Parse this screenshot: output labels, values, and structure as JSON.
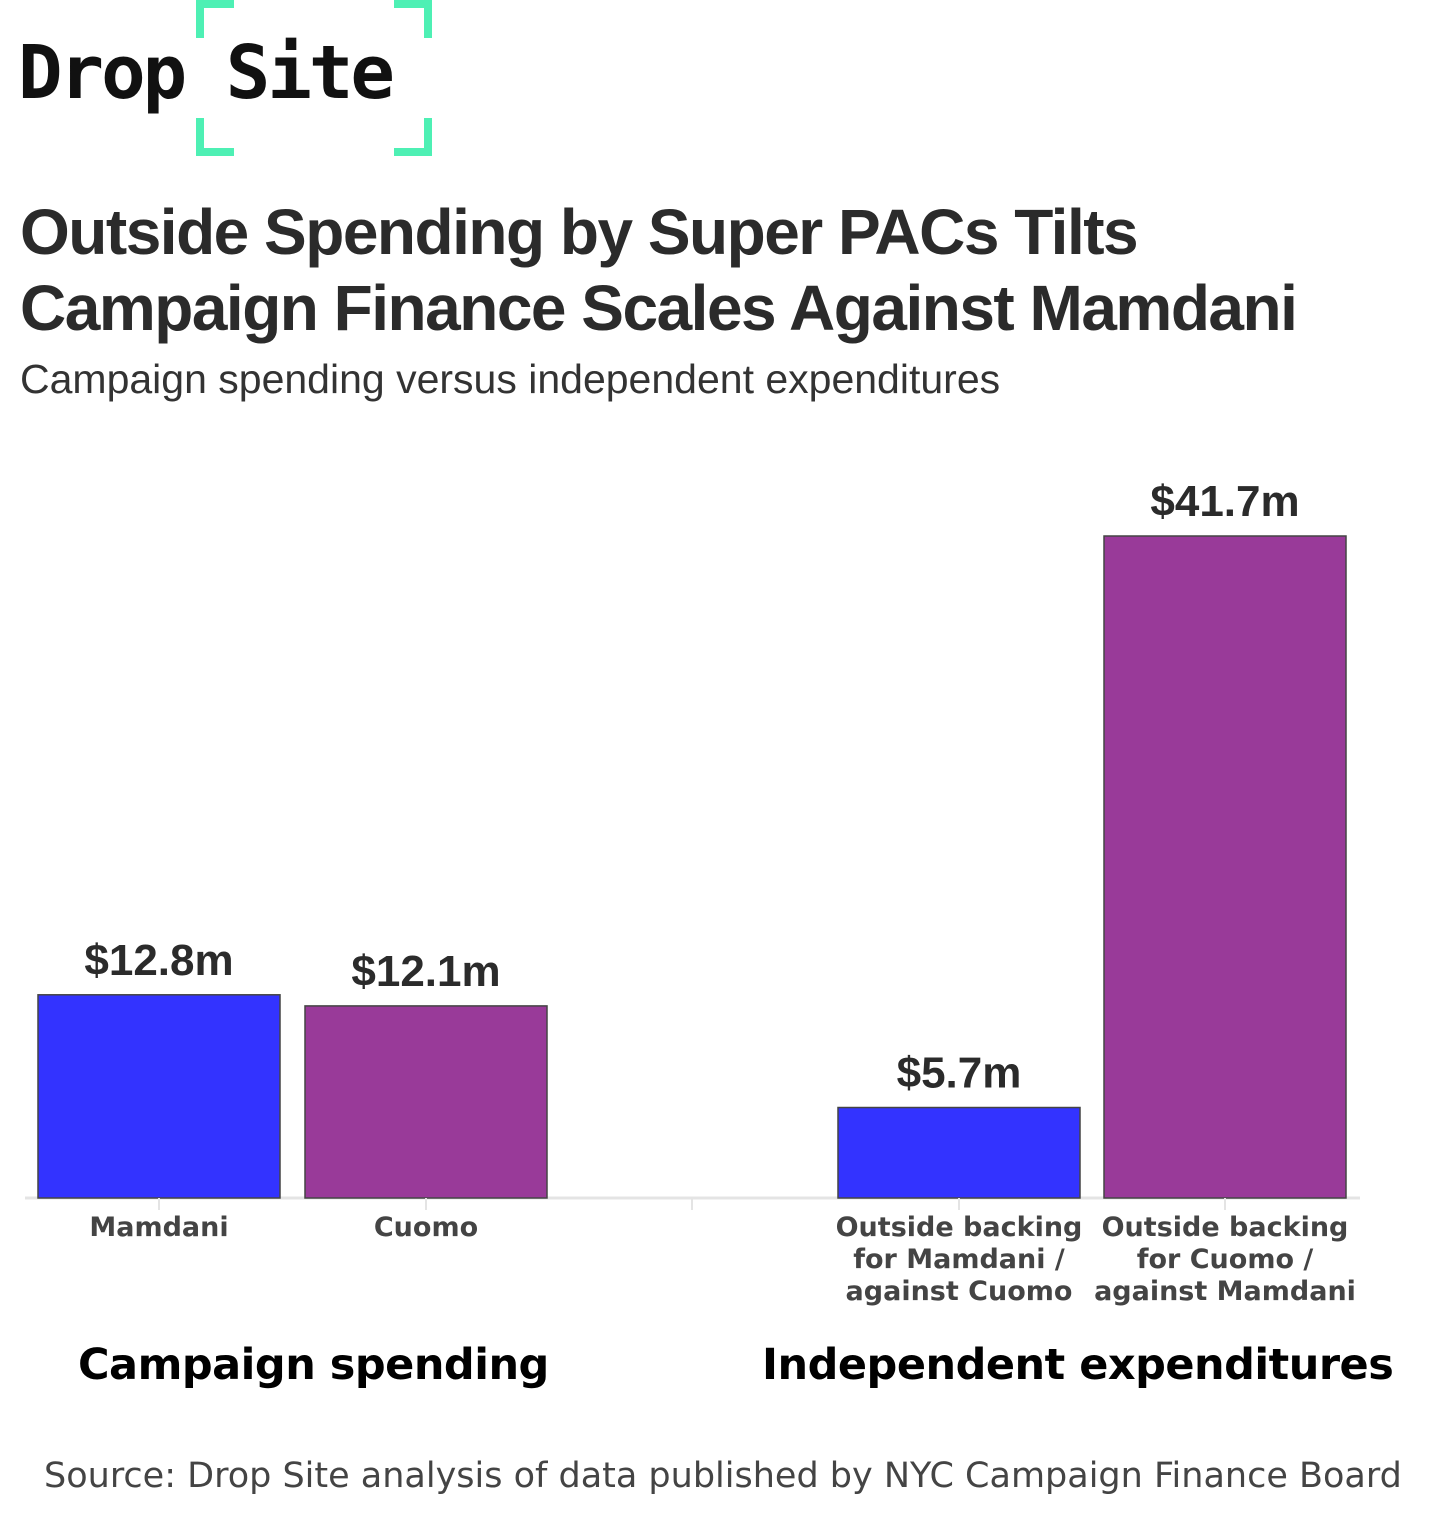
{
  "brand": {
    "name_part1": "Drop",
    "name_part2": "Site",
    "accent_color": "#4ef0b4"
  },
  "header": {
    "title": "Outside Spending by Super PACs Tilts Campaign Finance Scales Against Mamdani",
    "subtitle": "Campaign spending versus independent expenditures"
  },
  "chart_data": {
    "type": "bar",
    "title": "Outside Spending by Super PACs Tilts Campaign Finance Scales Against Mamdani",
    "subtitle": "Campaign spending versus independent expenditures",
    "xlabel": "",
    "ylabel": "",
    "unit": "$ millions",
    "ylim": [
      0,
      41.7
    ],
    "grid": false,
    "legend": "none",
    "groups": [
      {
        "name": "Campaign spending",
        "bars": [
          {
            "category": [
              "Mamdani"
            ],
            "value": 12.8,
            "label": "$12.8m",
            "color": "#3333ff"
          },
          {
            "category": [
              "Cuomo"
            ],
            "value": 12.1,
            "label": "$12.1m",
            "color": "#993a99"
          }
        ]
      },
      {
        "name": "Independent expenditures",
        "bars": [
          {
            "category": [
              "Outside backing",
              "for Mamdani /",
              "against Cuomo"
            ],
            "value": 5.7,
            "label": "$5.7m",
            "color": "#3333ff"
          },
          {
            "category": [
              "Outside backing",
              "for Cuomo /",
              "against Mamdani"
            ],
            "value": 41.7,
            "label": "$41.7m",
            "color": "#993a99"
          }
        ]
      }
    ]
  },
  "source": "Source: Drop Site analysis of data published by NYC Campaign Finance Board"
}
